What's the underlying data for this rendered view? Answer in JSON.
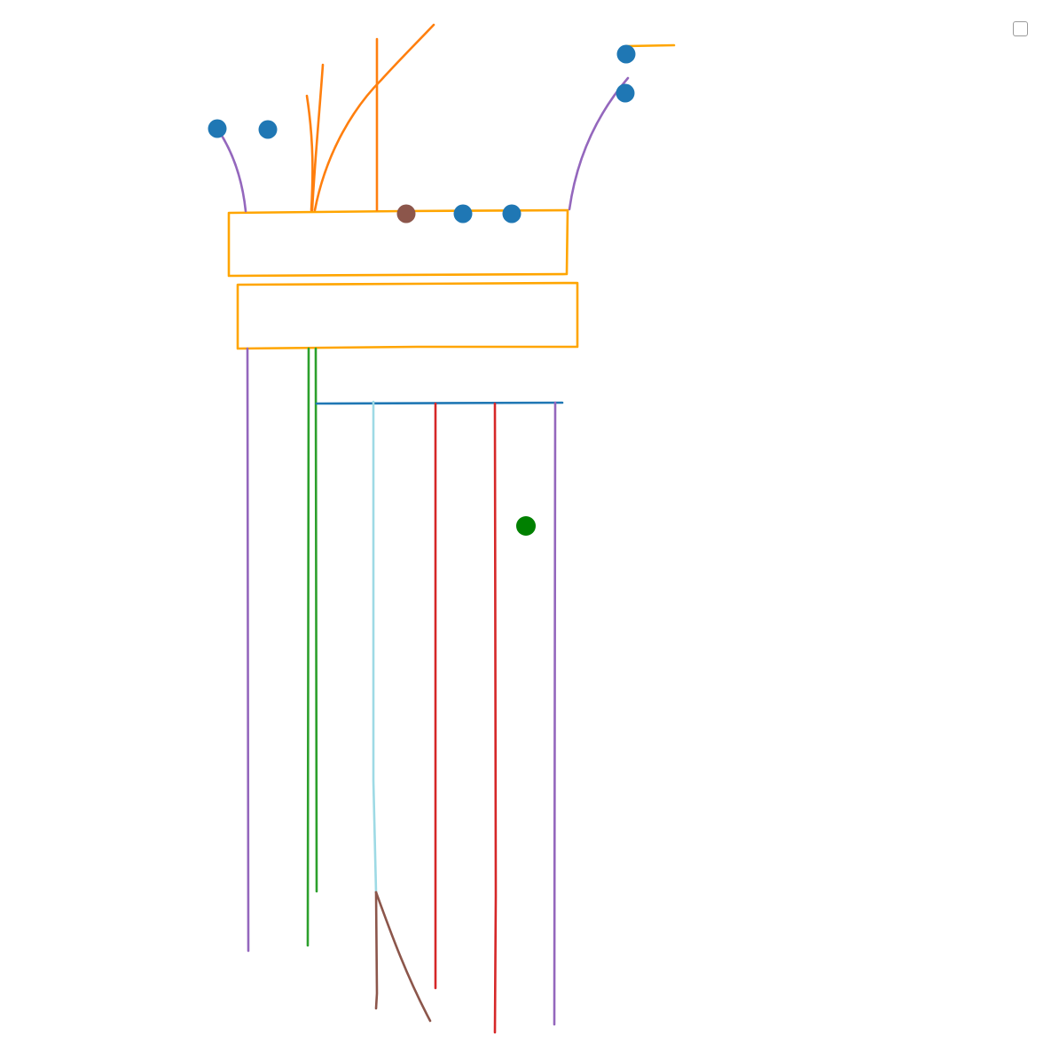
{
  "canvas": {
    "background": "#ffffff"
  },
  "palette": {
    "box_stroke": "#ffa500",
    "branch_orange": "#ff7f0e",
    "node_blue": "#1f77b4",
    "node_brown": "#8c564b",
    "node_green": "#008000",
    "line_purple": "#9467bd",
    "line_green": "#2ca02c",
    "line_blue": "#1f77b4",
    "line_cyan": "#9edae5",
    "line_red": "#d62728",
    "line_brown": "#8c564b"
  },
  "toggle": {
    "icon": "checkbox-icon",
    "checked": false
  }
}
